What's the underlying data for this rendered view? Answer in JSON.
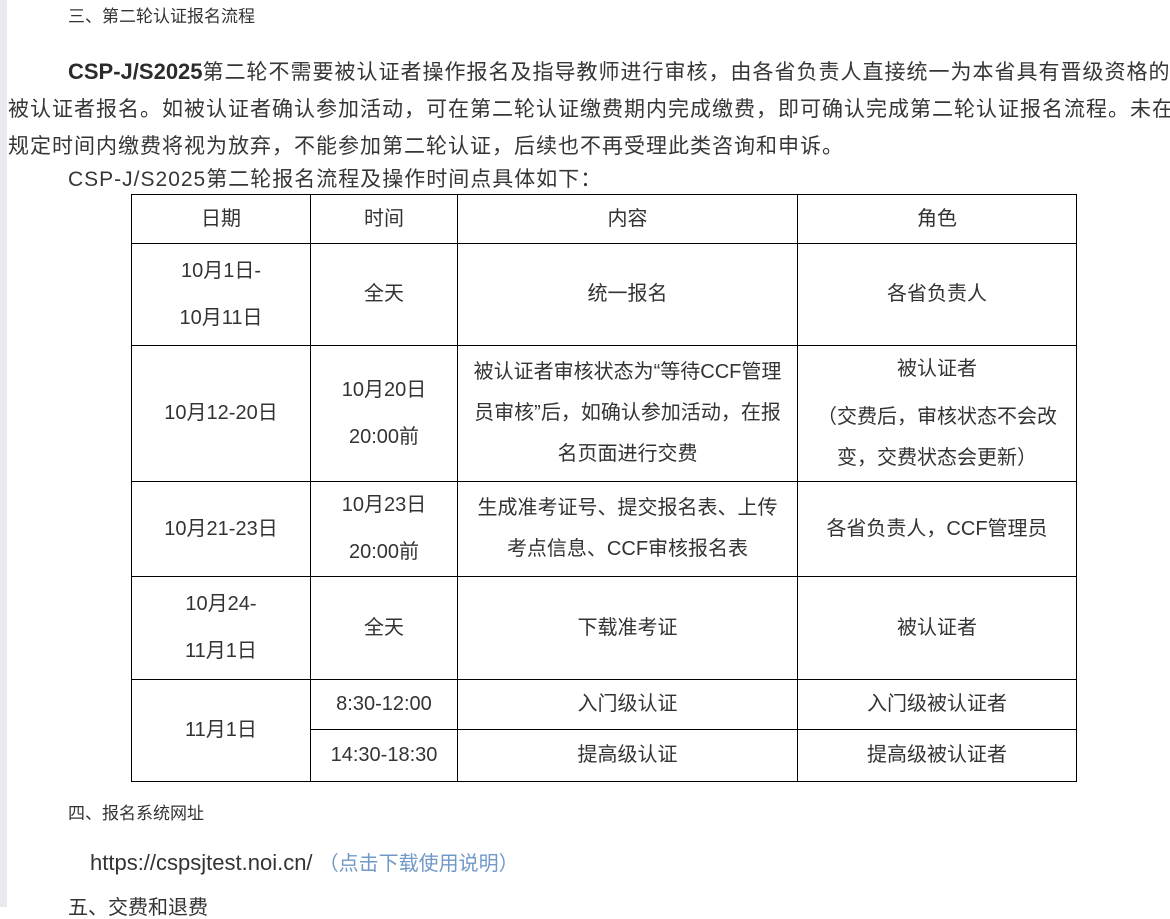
{
  "page": {
    "section3_title": "三、第二轮认证报名流程",
    "para1": {
      "line1_bold": "CSP-J/S2025",
      "line1_rest": "第二轮不需要被认证者操作报名及指导教师进行审核，由各省负责人直接统一为本省具有晋级资格的",
      "line2": "被认证者报名。如被认证者确认参加活动，可在第二轮认证缴费期内完成缴费，即可确认完成第二轮认证报名流程。未在",
      "line3": "规定时间内缴费将视为放弃，不能参加第二轮认证，后续也不再受理此类咨询和申诉。"
    },
    "para2": "CSP-J/S2025第二轮报名流程及操作时间点具体如下：",
    "section4_title": "四、报名系统网址",
    "url": "https://cspsjtest.noi.cn/",
    "url_link_label": "（点击下载使用说明）",
    "section5_title": "五、交费和退费"
  },
  "table": {
    "headers": [
      "日期",
      "时间",
      "内容",
      "角色"
    ],
    "rows": {
      "r1": {
        "date_line1": "10月1日-",
        "date_line2": "10月11日",
        "time": "全天",
        "content": "统一报名",
        "role": "各省负责人"
      },
      "r2": {
        "date": "10月12-20日",
        "time_line1": "10月20日",
        "time_line2": "20:00前",
        "content": "被认证者审核状态为“等待CCF管理员审核”后，如确认参加活动，在报名页面进行交费",
        "role_p1": "被认证者",
        "role_p2": "（交费后，审核状态不会改变，交费状态会更新）"
      },
      "r3": {
        "date": "10月21-23日",
        "time_line1": "10月23日",
        "time_line2": "20:00前",
        "content": "生成准考证号、提交报名表、上传考点信息、CCF审核报名表",
        "role": "各省负责人，CCF管理员"
      },
      "r4": {
        "date_line1": "10月24-",
        "date_line2": "11月1日",
        "time": "全天",
        "content": "下载准考证",
        "role": "被认证者"
      },
      "r5": {
        "date": "11月1日",
        "a": {
          "time": "8:30-12:00",
          "content": "入门级认证",
          "role": "入门级被认证者"
        },
        "b": {
          "time": "14:30-18:30",
          "content": "提高级认证",
          "role": "提高级被认证者"
        }
      }
    }
  },
  "colors": {
    "link_blue": "#7099c8",
    "text": "#333333",
    "table_border": "#000000",
    "page_edge_gray": "#e8eaed"
  }
}
